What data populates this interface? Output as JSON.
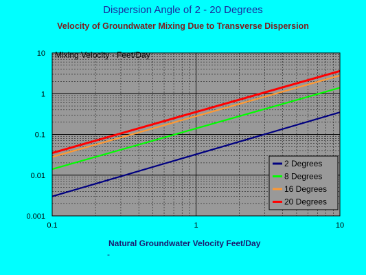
{
  "chart_data": {
    "type": "line",
    "title": "Dispersion Angle of 2 - 20 Degrees",
    "subtitle": "Velocity of Groundwater Mixing Due to Transverse Dispersion",
    "ylabel": "Mixing Velocity - Feet/Day",
    "xlabel": "Natural Groundwater Velocity  Feet/Day",
    "xlabel_extra": "-",
    "x_scale": "log",
    "y_scale": "log",
    "xlim": [
      0.1,
      10
    ],
    "ylim": [
      0.001,
      10
    ],
    "x_ticks": [
      "0.1",
      "1",
      "10"
    ],
    "y_ticks": [
      "0.001",
      "0.01",
      "0.1",
      "1",
      "10"
    ],
    "grid": true,
    "legend_position": "bottom-right",
    "series": [
      {
        "name": "2 Degrees",
        "color": "#000080",
        "x": [
          0.1,
          10
        ],
        "y": [
          0.003,
          0.35
        ]
      },
      {
        "name": "8 Degrees",
        "color": "#00ff00",
        "x": [
          0.1,
          10
        ],
        "y": [
          0.014,
          1.4
        ]
      },
      {
        "name": "16 Degrees",
        "color": "#ff9933",
        "x": [
          0.1,
          10
        ],
        "y": [
          0.028,
          2.8
        ]
      },
      {
        "name": "20 Degrees",
        "color": "#ff0000",
        "x": [
          0.1,
          10
        ],
        "y": [
          0.035,
          3.6
        ]
      }
    ],
    "colors": {
      "background": "#00ffff",
      "plot_area": "#999999",
      "gridline": "#000000",
      "legend_background": "#999999"
    }
  }
}
